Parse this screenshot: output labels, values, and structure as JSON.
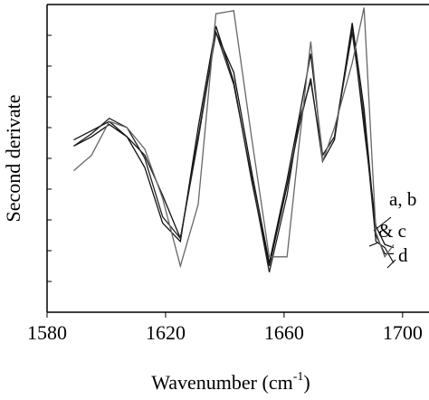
{
  "chart_data": {
    "type": "line",
    "xlabel": {
      "text": "Wavenumber (cm",
      "sup": "-1",
      "close": ")"
    },
    "ylabel": "Second derivate",
    "x": [
      1589,
      1595,
      1601,
      1607,
      1613,
      1619,
      1625,
      1631,
      1637,
      1643,
      1649,
      1655,
      1661,
      1665,
      1669,
      1673,
      1677,
      1683,
      1687,
      1691,
      1694,
      1697
    ],
    "series": [
      {
        "color": "#111111",
        "values": [
          5.4,
          5.7,
          6.1,
          5.7,
          5.1,
          3.8,
          2.4,
          5.7,
          9.1,
          7.8,
          4.6,
          1.6,
          4.3,
          6.3,
          8.4,
          5.1,
          5.7,
          9.3,
          6.0,
          2.8,
          2.2,
          2.1
        ]
      },
      {
        "color": "#111111",
        "values": [
          5.6,
          5.9,
          6.2,
          5.7,
          4.7,
          2.9,
          2.3,
          6.0,
          9.3,
          7.5,
          4.3,
          1.5,
          4.1,
          6.0,
          7.6,
          4.9,
          5.6,
          9.4,
          6.6,
          2.5,
          1.9,
          1.9
        ]
      },
      {
        "color": "#222222",
        "values": [
          5.4,
          5.8,
          6.3,
          6.0,
          5.0,
          3.1,
          2.4,
          5.6,
          9.1,
          7.4,
          4.4,
          1.3,
          3.8,
          6.2,
          7.5,
          5.1,
          5.7,
          9.1,
          6.3,
          2.3,
          2.1,
          1.6
        ]
      },
      {
        "color": "#666666",
        "values": [
          4.6,
          5.1,
          6.2,
          6.0,
          5.3,
          3.7,
          1.5,
          3.5,
          9.7,
          9.8,
          5.7,
          1.8,
          1.8,
          5.4,
          8.8,
          4.9,
          6.0,
          8.1,
          9.9,
          2.6,
          1.8,
          2.2
        ]
      }
    ],
    "annotations": [
      "a, b",
      "& c",
      "d"
    ],
    "xlim": [
      1580,
      1708
    ],
    "xticks": [
      1580,
      1620,
      1660,
      1700
    ],
    "ylim": [
      0,
      10
    ],
    "yticks": [
      1,
      2,
      3,
      4,
      5,
      6,
      7,
      8,
      9
    ]
  }
}
